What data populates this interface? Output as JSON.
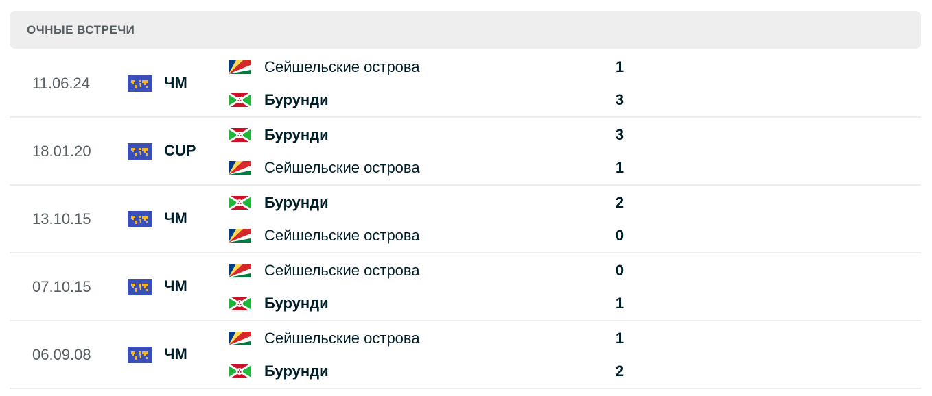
{
  "section_title": "ОЧНЫЕ ВСТРЕЧИ",
  "matches": [
    {
      "date": "11.06.24",
      "competition": "ЧМ",
      "competition_icon": "world-icon",
      "home": {
        "name": "Сейшельские острова",
        "flag": "seychelles",
        "score": "1",
        "winner": false
      },
      "away": {
        "name": "Бурунди",
        "flag": "burundi",
        "score": "3",
        "winner": true
      }
    },
    {
      "date": "18.01.20",
      "competition": "CUP",
      "competition_icon": "world-icon",
      "home": {
        "name": "Бурунди",
        "flag": "burundi",
        "score": "3",
        "winner": true
      },
      "away": {
        "name": "Сейшельские острова",
        "flag": "seychelles",
        "score": "1",
        "winner": false
      }
    },
    {
      "date": "13.10.15",
      "competition": "ЧМ",
      "competition_icon": "world-icon",
      "home": {
        "name": "Бурунди",
        "flag": "burundi",
        "score": "2",
        "winner": true
      },
      "away": {
        "name": "Сейшельские острова",
        "flag": "seychelles",
        "score": "0",
        "winner": false
      }
    },
    {
      "date": "07.10.15",
      "competition": "ЧМ",
      "competition_icon": "world-icon",
      "home": {
        "name": "Сейшельские острова",
        "flag": "seychelles",
        "score": "0",
        "winner": false
      },
      "away": {
        "name": "Бурунди",
        "flag": "burundi",
        "score": "1",
        "winner": true
      }
    },
    {
      "date": "06.09.08",
      "competition": "ЧМ",
      "competition_icon": "world-icon",
      "home": {
        "name": "Сейшельские острова",
        "flag": "seychelles",
        "score": "1",
        "winner": false
      },
      "away": {
        "name": "Бурунди",
        "flag": "burundi",
        "score": "2",
        "winner": true
      }
    }
  ]
}
